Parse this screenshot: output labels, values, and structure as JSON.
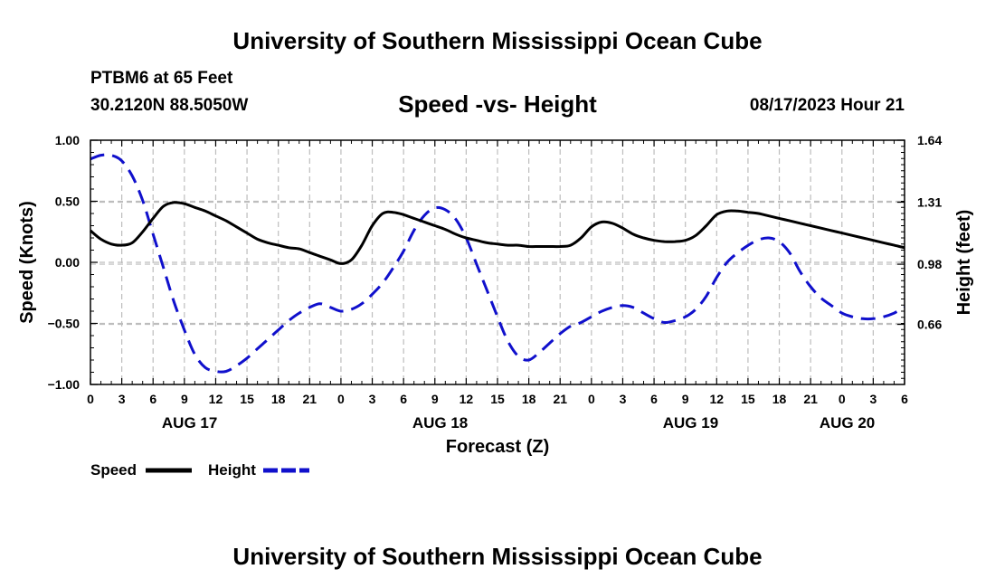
{
  "header": {
    "title": "University of Southern Mississippi Ocean Cube",
    "station": "PTBM6 at 65 Feet",
    "coords": "30.2120N  88.5050W",
    "datetime": "08/17/2023 Hour 21"
  },
  "footer": {
    "title": "University of Southern Mississippi Ocean Cube"
  },
  "chart_data": {
    "type": "line",
    "title": "Speed -vs- Height",
    "xlabel": "Forecast (Z)",
    "ylabel": "Speed (Knots)",
    "y2label": "Height (feet)",
    "xlim": [
      0,
      78
    ],
    "ylim": [
      -1.0,
      1.0
    ],
    "y2lim": [
      0.34,
      1.64
    ],
    "x_tick_values": [
      0,
      3,
      6,
      9,
      12,
      15,
      18,
      21,
      24,
      27,
      30,
      33,
      36,
      39,
      42,
      45,
      48,
      51,
      54,
      57,
      60,
      63,
      66,
      69,
      72,
      75,
      78
    ],
    "x_tick_labels": [
      "0",
      "3",
      "6",
      "9",
      "12",
      "15",
      "18",
      "21",
      "0",
      "3",
      "6",
      "9",
      "12",
      "15",
      "18",
      "21",
      "0",
      "3",
      "6",
      "9",
      "12",
      "15",
      "18",
      "21",
      "0",
      "3",
      "6"
    ],
    "y_tick_values": [
      -1.0,
      -0.5,
      0.0,
      0.5,
      1.0
    ],
    "y_tick_labels": [
      "−1.00",
      "−0.50",
      "0.00",
      "0.50",
      "1.00"
    ],
    "y2_tick_values": [
      0.66,
      0.98,
      1.31,
      1.64
    ],
    "y2_tick_labels": [
      "0.66",
      "0.98",
      "1.31",
      "1.64"
    ],
    "date_labels": [
      {
        "x": 9.5,
        "label": "AUG 17"
      },
      {
        "x": 33.5,
        "label": "AUG 18"
      },
      {
        "x": 57.5,
        "label": "AUG 19"
      },
      {
        "x": 72.5,
        "label": "AUG 20"
      }
    ],
    "grid": true,
    "series": [
      {
        "name": "Speed",
        "axis": "left",
        "color": "#000000",
        "dash": "solid",
        "x": [
          0,
          1,
          2,
          3,
          4,
          5,
          6,
          7,
          8,
          9,
          10,
          11,
          12,
          13,
          14,
          15,
          16,
          17,
          18,
          19,
          20,
          21,
          22,
          23,
          24,
          25,
          26,
          27,
          28,
          29,
          30,
          31,
          32,
          33,
          34,
          35,
          36,
          37,
          38,
          39,
          40,
          41,
          42,
          43,
          44,
          45,
          46,
          47,
          48,
          49,
          50,
          51,
          52,
          53,
          54,
          55,
          56,
          57,
          58,
          59,
          60,
          61,
          62,
          63,
          64,
          65,
          66,
          67,
          68,
          69,
          70,
          71,
          72,
          73,
          74,
          75,
          76,
          77,
          78
        ],
        "y": [
          0.26,
          0.19,
          0.15,
          0.14,
          0.16,
          0.25,
          0.36,
          0.46,
          0.49,
          0.48,
          0.45,
          0.42,
          0.38,
          0.34,
          0.29,
          0.24,
          0.19,
          0.16,
          0.14,
          0.12,
          0.11,
          0.08,
          0.05,
          0.02,
          -0.01,
          0.02,
          0.14,
          0.3,
          0.4,
          0.41,
          0.39,
          0.36,
          0.33,
          0.3,
          0.27,
          0.23,
          0.2,
          0.18,
          0.16,
          0.15,
          0.14,
          0.14,
          0.13,
          0.13,
          0.13,
          0.13,
          0.14,
          0.2,
          0.29,
          0.33,
          0.32,
          0.28,
          0.23,
          0.2,
          0.18,
          0.17,
          0.17,
          0.18,
          0.22,
          0.3,
          0.39,
          0.42,
          0.42,
          0.41,
          0.4,
          0.38,
          0.36,
          0.34,
          0.32,
          0.3,
          0.28,
          0.26,
          0.24,
          0.22,
          0.2,
          0.18,
          0.16,
          0.14,
          0.12
        ]
      },
      {
        "name": "Height",
        "axis": "right",
        "color": "#1010cc",
        "dash": "dashed",
        "x": [
          0,
          1,
          2,
          3,
          4,
          5,
          6,
          7,
          8,
          9,
          10,
          11,
          12,
          13,
          14,
          15,
          16,
          17,
          18,
          19,
          20,
          21,
          22,
          23,
          24,
          25,
          26,
          27,
          28,
          29,
          30,
          31,
          32,
          33,
          34,
          35,
          36,
          37,
          38,
          39,
          40,
          41,
          42,
          43,
          44,
          45,
          46,
          47,
          48,
          49,
          50,
          51,
          52,
          53,
          54,
          55,
          56,
          57,
          58,
          59,
          60,
          61,
          62,
          63,
          64,
          65,
          66,
          67,
          68,
          69,
          70,
          71,
          72,
          73,
          74,
          75,
          76,
          77,
          78
        ],
        "y": [
          1.54,
          1.56,
          1.56,
          1.53,
          1.45,
          1.32,
          1.14,
          0.96,
          0.78,
          0.63,
          0.5,
          0.43,
          0.41,
          0.41,
          0.44,
          0.48,
          0.53,
          0.58,
          0.63,
          0.68,
          0.72,
          0.75,
          0.77,
          0.75,
          0.73,
          0.74,
          0.77,
          0.82,
          0.88,
          0.96,
          1.05,
          1.16,
          1.24,
          1.28,
          1.27,
          1.22,
          1.12,
          0.98,
          0.84,
          0.7,
          0.57,
          0.49,
          0.47,
          0.51,
          0.56,
          0.61,
          0.65,
          0.67,
          0.7,
          0.73,
          0.75,
          0.76,
          0.75,
          0.72,
          0.69,
          0.67,
          0.68,
          0.7,
          0.74,
          0.81,
          0.91,
          0.99,
          1.04,
          1.08,
          1.11,
          1.12,
          1.1,
          1.04,
          0.94,
          0.86,
          0.8,
          0.76,
          0.72,
          0.7,
          0.69,
          0.69,
          0.7,
          0.72,
          0.75
        ]
      }
    ],
    "legend": [
      {
        "label": "Speed",
        "color": "#000000",
        "dash": "solid"
      },
      {
        "label": "Height",
        "color": "#1010cc",
        "dash": "dashed"
      }
    ],
    "legend_position": "bottom-left"
  }
}
